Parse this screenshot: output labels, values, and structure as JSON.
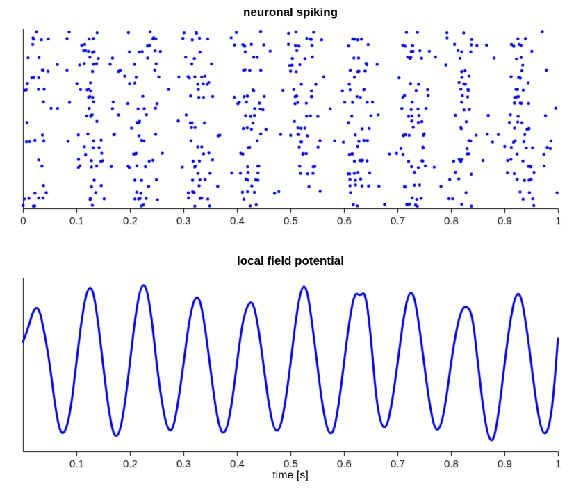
{
  "figure": {
    "background": "#ffffff",
    "axis_color": "#000000",
    "accent": "#0000dd"
  },
  "chart_data": [
    {
      "type": "scatter",
      "title": "neuronal spiking",
      "xlabel": "",
      "ylabel": "",
      "xlim": [
        0,
        1
      ],
      "x_ticks": [
        0,
        0.1,
        0.2,
        0.3,
        0.4,
        0.5,
        0.6,
        0.7,
        0.8,
        0.9,
        1
      ],
      "x_tick_labels": [
        "0",
        "0.1",
        "0.2",
        "0.3",
        "0.4",
        "0.5",
        "0.6",
        "0.7",
        "0.8",
        "0.9",
        "1"
      ],
      "n_trials": 28,
      "spikes_per_trial_min": 18,
      "spikes_per_trial_max": 28,
      "oscillation_hz": 10,
      "cluster_phase_center_s": 0.025,
      "baseline_rate_fraction": 0.12,
      "cluster_centers": [
        0.025,
        0.125,
        0.225,
        0.325,
        0.425,
        0.525,
        0.625,
        0.725,
        0.825,
        0.925
      ],
      "marker_color": "#0000dd",
      "marker_radius": 2.2,
      "seed": 1234,
      "grid": false,
      "legend": false
    },
    {
      "type": "line",
      "title": "local field potential",
      "xlabel": "time [s]",
      "ylabel": "",
      "xlim": [
        0,
        1
      ],
      "ylim": [
        -1.15,
        1.15
      ],
      "x_ticks": [
        0.1,
        0.2,
        0.3,
        0.4,
        0.5,
        0.6,
        0.7,
        0.8,
        0.9,
        1
      ],
      "x_tick_labels": [
        "0.1",
        "0.2",
        "0.3",
        "0.4",
        "0.5",
        "0.6",
        "0.7",
        "0.8",
        "0.9",
        "1"
      ],
      "x_start": 0,
      "x_step": 0.01,
      "values": [
        0.3,
        0.48,
        0.74,
        0.76,
        0.43,
        0.02,
        -0.55,
        -0.92,
        -0.89,
        -0.57,
        0.03,
        0.62,
        1.0,
        1.03,
        0.6,
        -0.02,
        -0.59,
        -0.96,
        -0.93,
        -0.56,
        0.02,
        0.64,
        1.04,
        1.06,
        0.66,
        0.0,
        -0.52,
        -0.86,
        -0.88,
        -0.51,
        0.0,
        0.55,
        0.88,
        0.9,
        0.52,
        -0.03,
        -0.57,
        -0.91,
        -0.89,
        -0.55,
        0.02,
        0.55,
        0.8,
        0.84,
        0.5,
        -0.02,
        -0.56,
        -0.88,
        -0.87,
        -0.53,
        0.0,
        0.6,
        1.02,
        1.04,
        0.58,
        0.0,
        -0.56,
        -0.9,
        -0.92,
        -0.55,
        0.02,
        0.58,
        0.96,
        0.91,
        0.97,
        0.4,
        -0.45,
        -0.82,
        -0.84,
        -0.5,
        0.0,
        0.56,
        0.94,
        0.96,
        0.55,
        0.0,
        -0.53,
        -0.87,
        -0.85,
        -0.52,
        0.02,
        0.46,
        0.74,
        0.78,
        0.66,
        0.05,
        -0.58,
        -0.98,
        -1.02,
        -0.6,
        0.0,
        0.55,
        0.92,
        0.95,
        0.56,
        0.02,
        -0.54,
        -0.9,
        -0.92,
        -0.56,
        0.35
      ],
      "line_color": "#0000dd",
      "line_width": 3,
      "grid": false,
      "legend": false
    }
  ]
}
